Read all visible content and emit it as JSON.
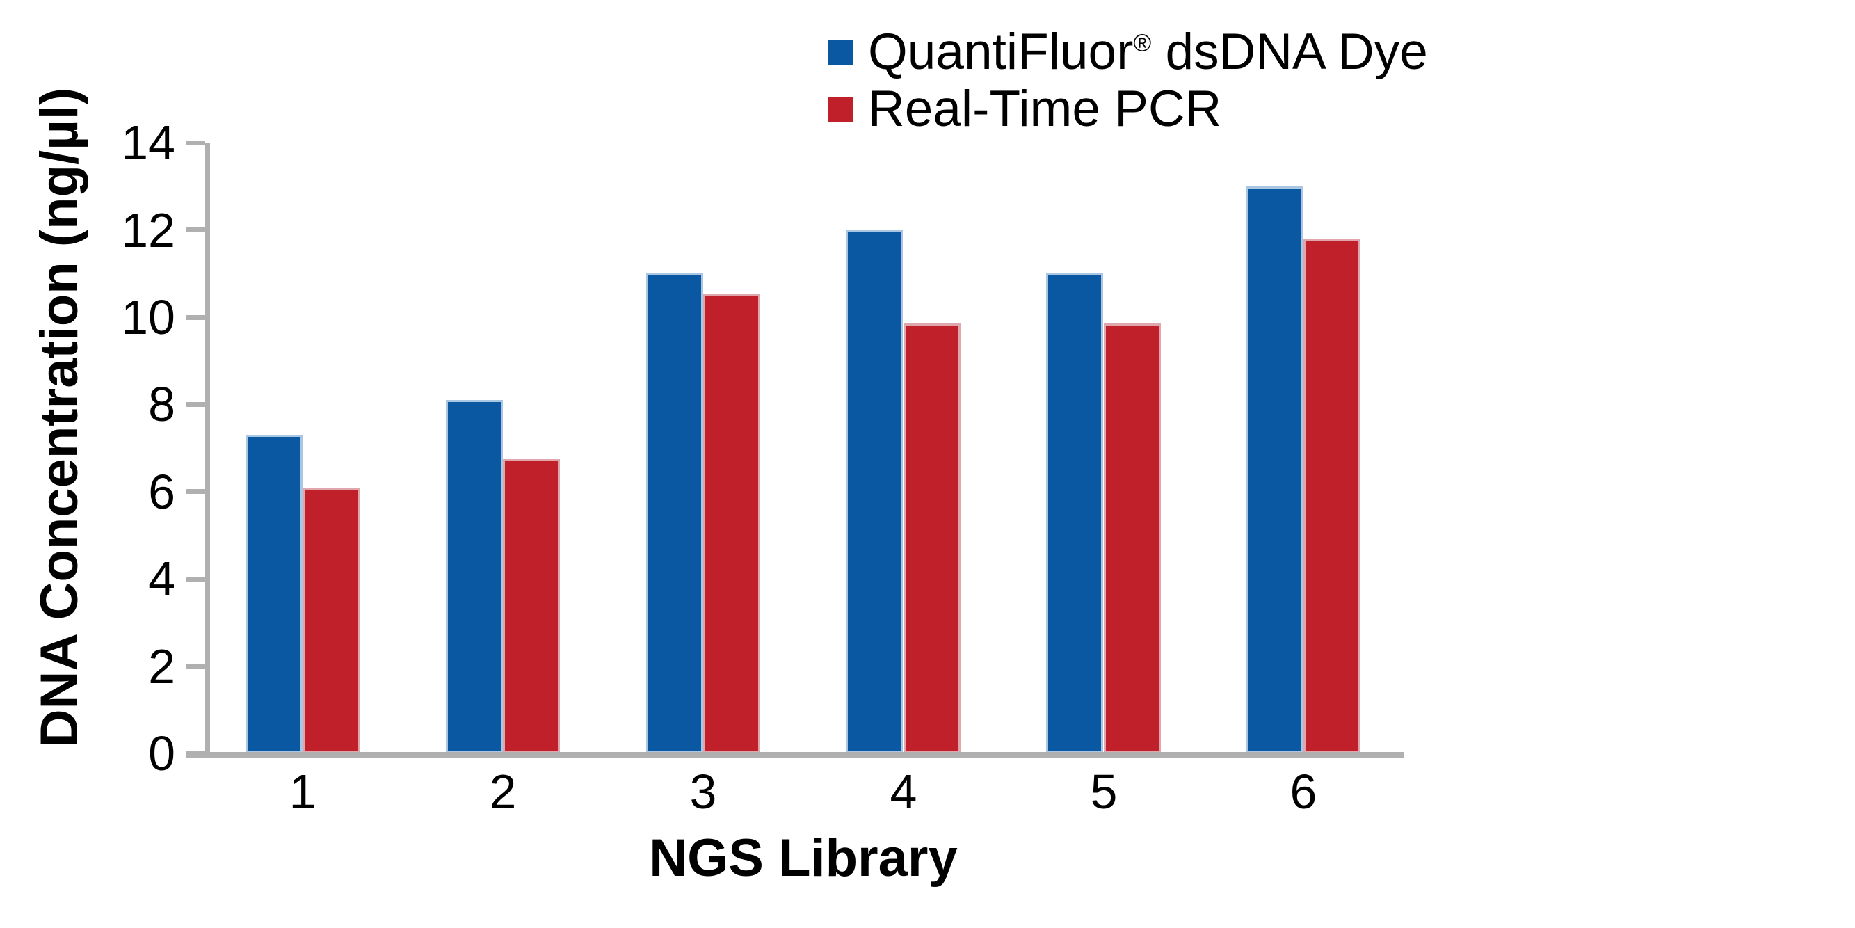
{
  "chart_data": {
    "type": "bar",
    "title": "",
    "categories": [
      "1",
      "2",
      "3",
      "4",
      "5",
      "6"
    ],
    "series": [
      {
        "name": "QuantiFluor® dsDNA Dye",
        "color": "#0a57a2",
        "edge_color": "#a9c6e2",
        "values": [
          7.3,
          8.1,
          11.0,
          12.0,
          11.0,
          13.0
        ]
      },
      {
        "name": "Real-Time PCR",
        "color": "#bf202a",
        "edge_color": "#dfa6ab",
        "values": [
          6.1,
          6.75,
          10.55,
          9.85,
          9.85,
          11.8
        ]
      }
    ],
    "xlabel": "NGS Library",
    "ylabel": "DNA Concentration (ng/µl)",
    "ylim": [
      0,
      14
    ],
    "yticks": [
      0,
      2,
      4,
      6,
      8,
      10,
      12,
      14
    ],
    "ytick_step": 2,
    "grid": false,
    "legend_position": "top-right",
    "axis_color": "#b0b0b0",
    "text_color": "#000000"
  },
  "legend": {
    "items": [
      {
        "label": "QuantiFluor® dsDNA Dye",
        "parts": {
          "pre": "QuantiFluor",
          "sup": "®",
          "post": " dsDNA Dye"
        },
        "swatch_color": "#0a57a2"
      },
      {
        "label": "Real-Time PCR",
        "swatch_color": "#bf202a"
      }
    ]
  }
}
